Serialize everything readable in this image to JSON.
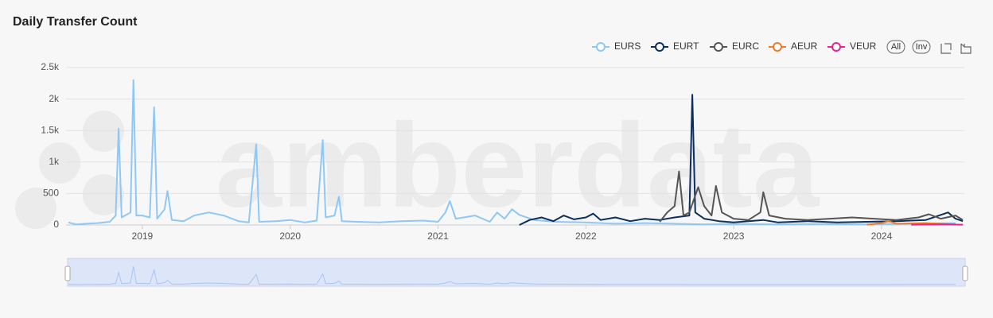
{
  "chart_data": {
    "type": "line",
    "title": "Daily Transfer Count",
    "watermark": "amberdata",
    "legend_buttons": [
      "All",
      "Inv"
    ],
    "xlim": [
      2018.484,
      2024.56
    ],
    "xticks": [
      2019,
      2020,
      2021,
      2022,
      2023,
      2024
    ],
    "ylim": [
      0,
      2500
    ],
    "yticks": [
      0,
      500,
      {
        "value": 1000,
        "label": "1k"
      },
      {
        "value": 1500,
        "label": "1.5k"
      },
      {
        "value": 2000,
        "label": "2k"
      },
      {
        "value": 2500,
        "label": "2.5k"
      }
    ],
    "grid": true,
    "legend_position": "top-right",
    "series": [
      {
        "name": "EURS",
        "color": "#90c8f5",
        "x": [
          2018.5,
          2018.55,
          2018.62,
          2018.7,
          2018.78,
          2018.82,
          2018.84,
          2018.86,
          2018.92,
          2018.94,
          2018.96,
          2019.0,
          2019.05,
          2019.08,
          2019.1,
          2019.15,
          2019.17,
          2019.2,
          2019.28,
          2019.35,
          2019.45,
          2019.55,
          2019.65,
          2019.72,
          2019.77,
          2019.79,
          2019.9,
          2020.0,
          2020.1,
          2020.18,
          2020.22,
          2020.24,
          2020.3,
          2020.33,
          2020.35,
          2020.45,
          2020.6,
          2020.75,
          2020.9,
          2021.0,
          2021.05,
          2021.08,
          2021.12,
          2021.25,
          2021.35,
          2021.4,
          2021.45,
          2021.5,
          2021.55,
          2021.65,
          2021.8,
          2022.0,
          2022.2,
          2022.4,
          2022.6,
          2022.8,
          2023.0,
          2023.3,
          2023.6,
          2023.9,
          2024.2,
          2024.5
        ],
        "values": [
          40,
          10,
          20,
          30,
          50,
          150,
          1530,
          120,
          200,
          2300,
          150,
          150,
          120,
          1870,
          100,
          250,
          540,
          80,
          60,
          150,
          200,
          150,
          60,
          40,
          1280,
          50,
          60,
          80,
          40,
          70,
          1350,
          120,
          150,
          450,
          60,
          50,
          40,
          60,
          70,
          50,
          200,
          380,
          100,
          150,
          50,
          200,
          100,
          250,
          160,
          80,
          50,
          40,
          20,
          30,
          20,
          10,
          15,
          10,
          15,
          10,
          20,
          30
        ]
      },
      {
        "name": "EURT",
        "color": "#0b2f5e",
        "x": [
          2021.55,
          2021.62,
          2021.7,
          2021.78,
          2021.85,
          2021.92,
          2022.0,
          2022.05,
          2022.1,
          2022.2,
          2022.3,
          2022.4,
          2022.5,
          2022.6,
          2022.7,
          2022.72,
          2022.74,
          2022.8,
          2022.9,
          2023.0,
          2023.1,
          2023.2,
          2023.3,
          2023.5,
          2023.7,
          2023.9,
          2024.1,
          2024.3,
          2024.45,
          2024.5,
          2024.55
        ],
        "values": [
          0,
          80,
          120,
          60,
          150,
          90,
          120,
          180,
          80,
          120,
          60,
          100,
          80,
          120,
          150,
          2070,
          200,
          100,
          60,
          40,
          60,
          80,
          40,
          60,
          40,
          50,
          60,
          80,
          200,
          100,
          60
        ]
      },
      {
        "name": "EURC",
        "color": "#555555",
        "x": [
          2022.5,
          2022.55,
          2022.6,
          2022.63,
          2022.66,
          2022.7,
          2022.76,
          2022.8,
          2022.85,
          2022.88,
          2022.92,
          2023.0,
          2023.1,
          2023.18,
          2023.2,
          2023.24,
          2023.35,
          2023.5,
          2023.65,
          2023.8,
          2023.95,
          2024.1,
          2024.25,
          2024.32,
          2024.4,
          2024.5,
          2024.55
        ],
        "values": [
          50,
          200,
          300,
          850,
          150,
          200,
          600,
          300,
          150,
          620,
          200,
          100,
          80,
          200,
          520,
          150,
          100,
          80,
          100,
          120,
          100,
          80,
          120,
          170,
          100,
          150,
          80
        ]
      },
      {
        "name": "AEUR",
        "color": "#f07a2b",
        "x": [
          2023.9,
          2024.0,
          2024.05,
          2024.1,
          2024.3,
          2024.5
        ],
        "values": [
          5,
          30,
          60,
          20,
          30,
          10
        ]
      },
      {
        "name": "VEUR",
        "color": "#e8248c",
        "x": [
          2024.2,
          2024.4,
          2024.55
        ],
        "values": [
          5,
          10,
          5
        ]
      }
    ]
  }
}
